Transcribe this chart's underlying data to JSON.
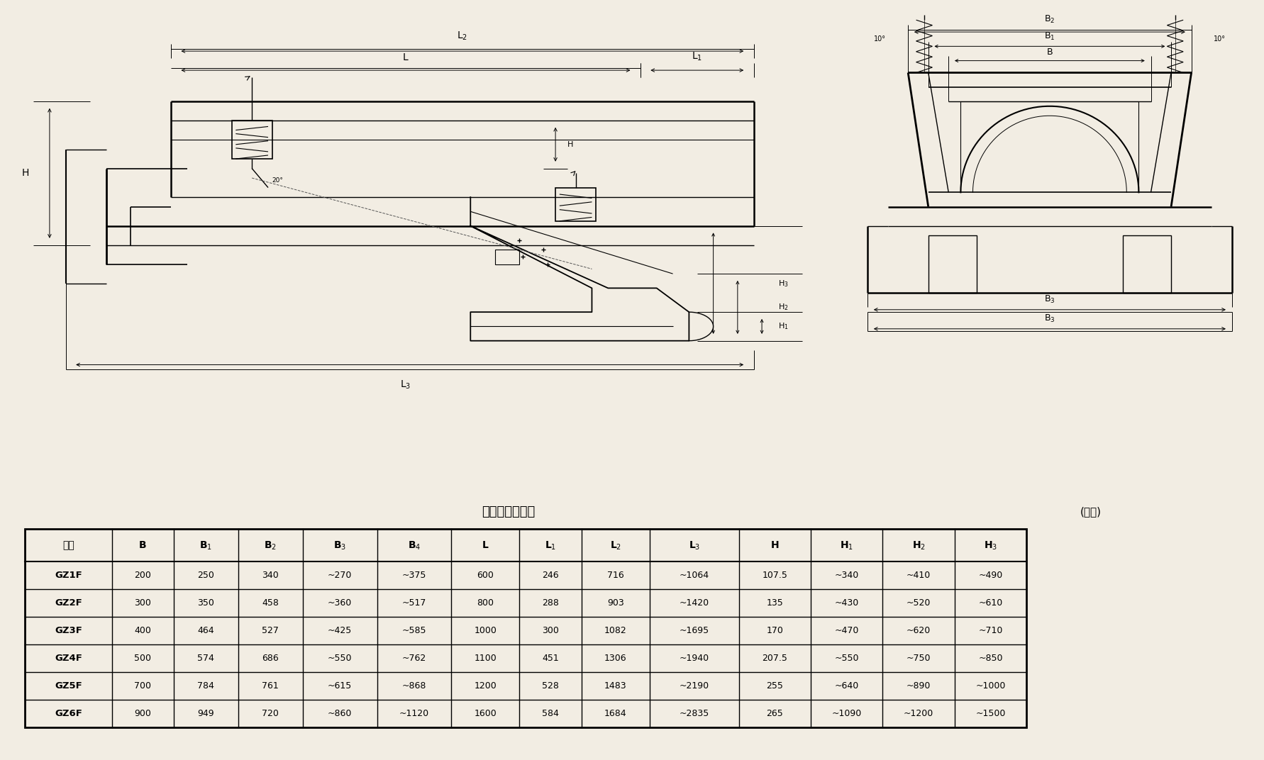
{
  "title_center": "封闭型外型尺寸",
  "title_right": "(毫米)",
  "headers": [
    "型号",
    "B",
    "B1",
    "B2",
    "B3",
    "B4",
    "L",
    "L1",
    "L2",
    "L3",
    "H",
    "H1",
    "H2",
    "H3"
  ],
  "header_subs": [
    "",
    "",
    "1",
    "2",
    "3",
    "4",
    "",
    "1",
    "2",
    "3",
    "",
    "1",
    "2",
    "3"
  ],
  "rows": [
    [
      "GZ1F",
      "200",
      "250",
      "340",
      "~270",
      "~375",
      "600",
      "246",
      "716",
      "~1064",
      "107.5",
      "~340",
      "~410",
      "~490"
    ],
    [
      "GZ2F",
      "300",
      "350",
      "458",
      "~360",
      "~517",
      "800",
      "288",
      "903",
      "~1420",
      "135",
      "~430",
      "~520",
      "~610"
    ],
    [
      "GZ3F",
      "400",
      "464",
      "527",
      "~425",
      "~585",
      "1000",
      "300",
      "1082",
      "~1695",
      "170",
      "~470",
      "~620",
      "~710"
    ],
    [
      "GZ4F",
      "500",
      "574",
      "686",
      "~550",
      "~762",
      "1100",
      "451",
      "1306",
      "~1940",
      "207.5",
      "~550",
      "~750",
      "~850"
    ],
    [
      "GZ5F",
      "700",
      "784",
      "761",
      "~615",
      "~868",
      "1200",
      "528",
      "1483",
      "~2190",
      "255",
      "~640",
      "~890",
      "~1000"
    ],
    [
      "GZ6F",
      "900",
      "949",
      "720",
      "~860",
      "~1120",
      "1600",
      "584",
      "1684",
      "~2835",
      "265",
      "~1090",
      "~1200",
      "~1500"
    ]
  ],
  "bg_color": "#f2ede3",
  "line_color": "#000000",
  "text_color": "#000000"
}
